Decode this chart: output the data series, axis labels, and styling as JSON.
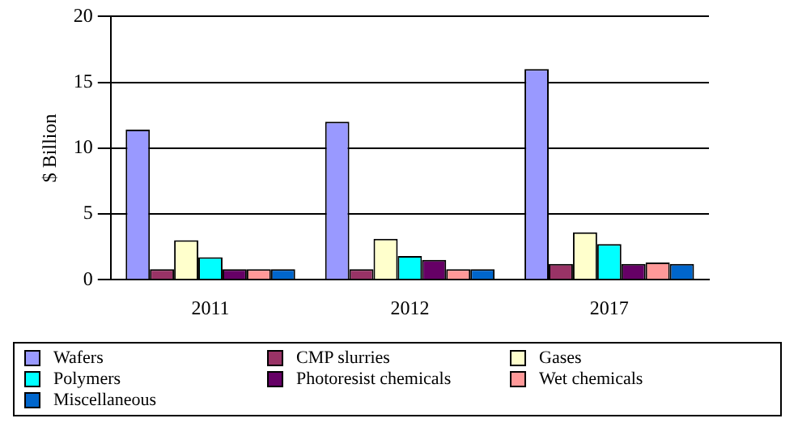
{
  "chart_data": {
    "type": "bar",
    "ylabel": "$ Billion",
    "categories": [
      "2011",
      "2012",
      "2017"
    ],
    "ylim": [
      0,
      20
    ],
    "yticks": [
      0,
      5,
      10,
      15,
      20
    ],
    "grid": "y",
    "legend": "bottom",
    "series": [
      {
        "name": "Wafers",
        "color": "#9999ff",
        "values": [
          11.4,
          12,
          16
        ]
      },
      {
        "name": "CMP slurries",
        "color": "#993366",
        "values": [
          0.8,
          0.8,
          1.2
        ]
      },
      {
        "name": "Gases",
        "color": "#ffffcc",
        "values": [
          3,
          3.1,
          3.6
        ]
      },
      {
        "name": "Polymers",
        "color": "#00ffff",
        "values": [
          1.7,
          1.8,
          2.7
        ]
      },
      {
        "name": "Photoresist chemicals",
        "color": "#660066",
        "values": [
          0.8,
          1.5,
          1.2
        ]
      },
      {
        "name": "Wet chemicals",
        "color": "#ff9999",
        "values": [
          0.8,
          0.8,
          1.3
        ]
      },
      {
        "name": "Miscellaneous",
        "color": "#0066cc",
        "values": [
          0.8,
          0.8,
          1.2
        ]
      }
    ]
  }
}
